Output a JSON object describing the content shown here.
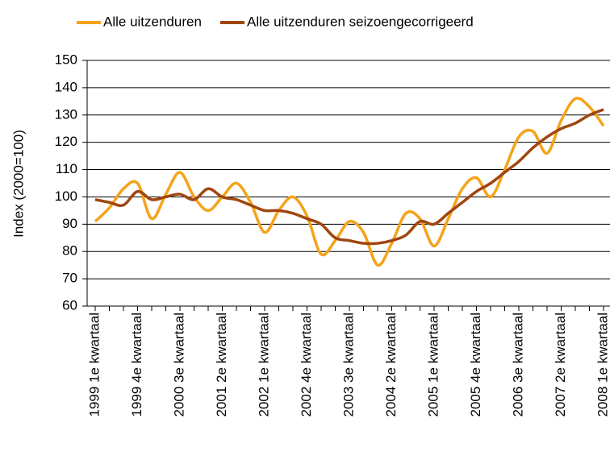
{
  "chart_data": {
    "type": "line",
    "y_axis_label": "Index (2000=100)",
    "categories": [
      "1999 1e kwartaal",
      null,
      null,
      "1999 4e kwartaal",
      null,
      null,
      "2000 3e kwartaal",
      null,
      null,
      "2001 2e kwartaal",
      null,
      null,
      "2002 1e kwartaal",
      null,
      null,
      "2002 4e kwartaal",
      null,
      null,
      "2003 3e kwartaal",
      null,
      null,
      "2004 2e kwartaal",
      null,
      null,
      "2005 1e kwartaal",
      null,
      null,
      "2005 4e kwartaal",
      null,
      null,
      "2006 3e kwartaal",
      null,
      null,
      "2007 2e kwartaal",
      null,
      null,
      "2008 1e kwartaal"
    ],
    "series": [
      {
        "name": "Alle uitzenduren",
        "color": "#f5a31a",
        "values": [
          91,
          96,
          103,
          105,
          92,
          101,
          109,
          100,
          95,
          100,
          105,
          98,
          87,
          95,
          100,
          93,
          79,
          84,
          91,
          87,
          75,
          83,
          94,
          92,
          82,
          92,
          103,
          107,
          100,
          110,
          122,
          124,
          116,
          128,
          136,
          133,
          126
        ]
      },
      {
        "name": "Alle uitzenduren seizoengecorrigeerd",
        "color": "#a0460f",
        "values": [
          99,
          98,
          97,
          102,
          99,
          100,
          101,
          99,
          103,
          100,
          99,
          97,
          95,
          95,
          94,
          92,
          90,
          85,
          84,
          83,
          83,
          84,
          86,
          91,
          90,
          94,
          98,
          102,
          105,
          109,
          113,
          118,
          122,
          125,
          127,
          130,
          132
        ]
      }
    ],
    "ylim": [
      60,
      150
    ],
    "yticks": [
      60,
      70,
      80,
      90,
      100,
      110,
      120,
      130,
      140,
      150
    ],
    "grid": true
  }
}
